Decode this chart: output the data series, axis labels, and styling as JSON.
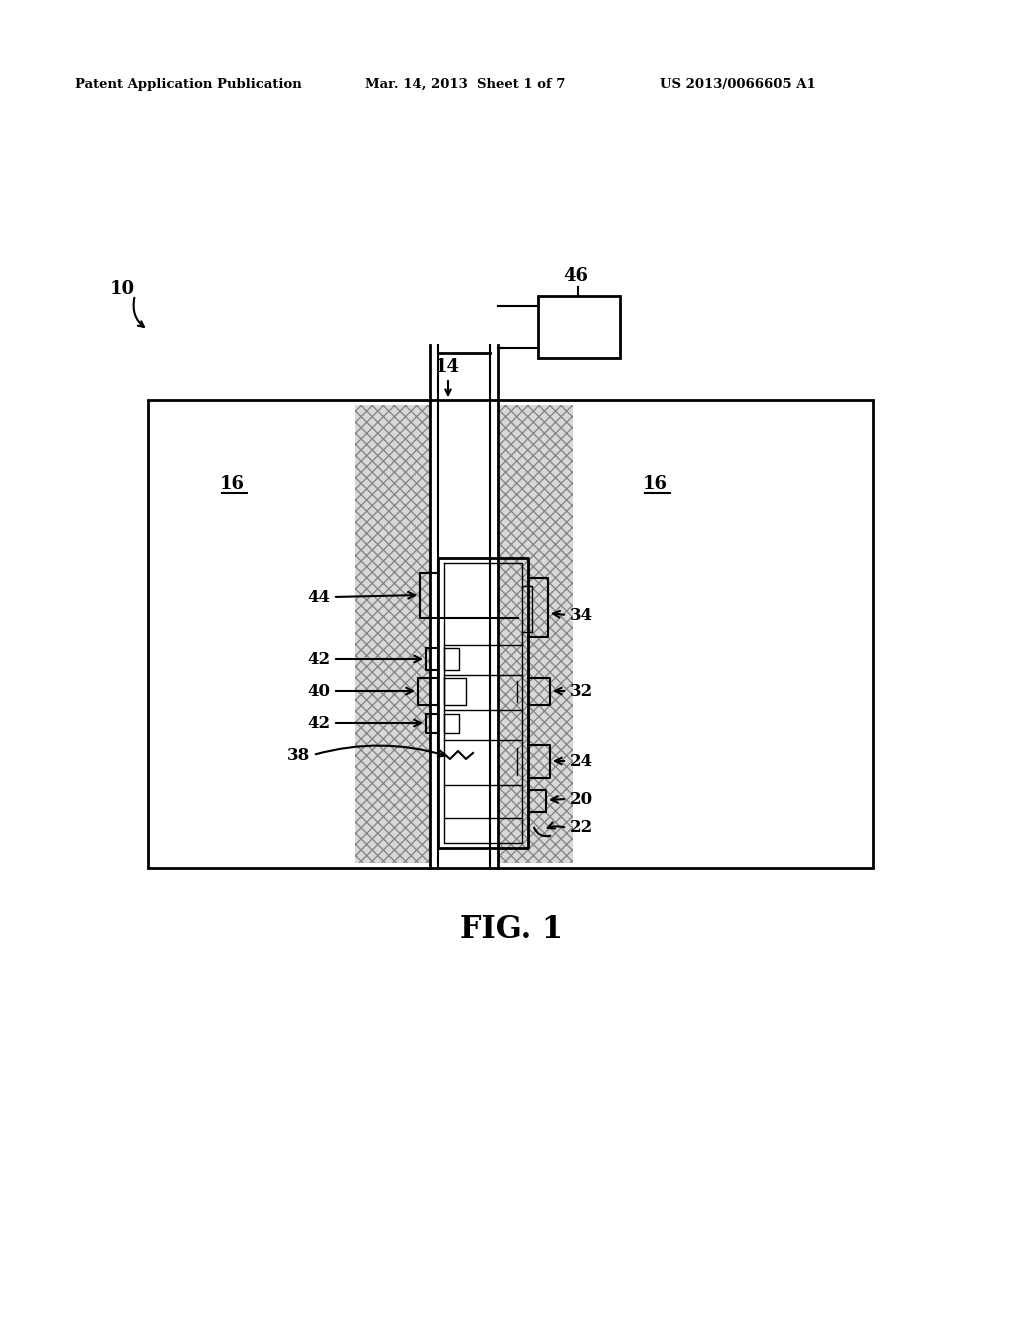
{
  "bg_color": "#ffffff",
  "header_left": "Patent Application Publication",
  "header_mid": "Mar. 14, 2013  Sheet 1 of 7",
  "header_right": "US 2013/0066605 A1",
  "fig_label": "FIG. 1",
  "label_10": "10",
  "label_14": "14",
  "label_16_left": "16",
  "label_16_right": "16",
  "label_46": "46",
  "label_44": "44",
  "label_42a": "42",
  "label_40": "40",
  "label_42b": "42",
  "label_38": "38",
  "label_34": "34",
  "label_32": "32",
  "label_24": "24",
  "label_20": "20",
  "label_22": "22"
}
